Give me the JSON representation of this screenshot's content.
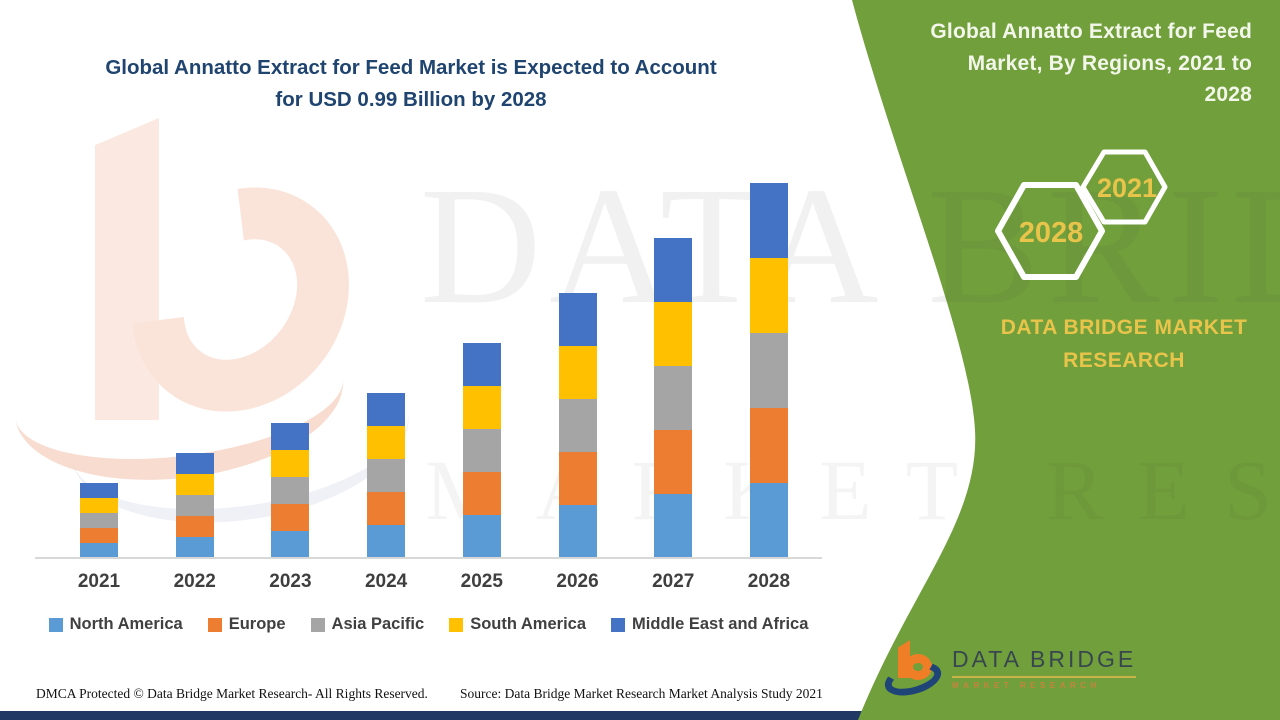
{
  "main_chart": {
    "title_line1": "Global Annatto Extract for Feed Market is Expected to Account",
    "title_line2": "for USD 0.99 Billion by 2028",
    "title_color": "#1F4470"
  },
  "chart_data": {
    "type": "bar",
    "stacked": true,
    "title": "Global Annatto Extract for Feed Market is Expected to Account for USD 0.99 Billion by 2028",
    "unit": "USD Billion",
    "categories": [
      "2021",
      "2022",
      "2023",
      "2024",
      "2025",
      "2026",
      "2027",
      "2028"
    ],
    "series": [
      {
        "name": "North America",
        "color": "#5B9BD5",
        "values": [
          0.041,
          0.056,
          0.071,
          0.086,
          0.113,
          0.141,
          0.169,
          0.198
        ]
      },
      {
        "name": "Europe",
        "color": "#ED7D31",
        "values": [
          0.041,
          0.056,
          0.071,
          0.086,
          0.113,
          0.141,
          0.169,
          0.198
        ]
      },
      {
        "name": "Asia Pacific",
        "color": "#A5A5A5",
        "values": [
          0.041,
          0.056,
          0.071,
          0.086,
          0.113,
          0.141,
          0.169,
          0.198
        ]
      },
      {
        "name": "South America",
        "color": "#FFC000",
        "values": [
          0.041,
          0.056,
          0.071,
          0.086,
          0.113,
          0.141,
          0.169,
          0.198
        ]
      },
      {
        "name": "Middle East and Africa",
        "color": "#4472C4",
        "values": [
          0.041,
          0.056,
          0.071,
          0.086,
          0.113,
          0.141,
          0.169,
          0.198
        ]
      }
    ],
    "totals_estimated": [
      0.21,
      0.28,
      0.36,
      0.43,
      0.56,
      0.71,
      0.85,
      0.99
    ],
    "xlabel": "",
    "ylabel": "",
    "y_axis_visible": false,
    "grid": false,
    "legend_position": "bottom"
  },
  "green_panel": {
    "background": "#719F3B",
    "title_lines": [
      "Global Annatto Extract for Feed",
      "Market, By Regions, 2021 to",
      "2028"
    ],
    "hexagon_small_label": "2021",
    "hexagon_large_label": "2028",
    "brand_text": "DATA BRIDGE MARKET RESEARCH",
    "accent_color": "#E8C44B"
  },
  "logo": {
    "name_text": "DATA BRIDGE",
    "sub_text": "MARKET RESEARCH"
  },
  "watermark": {
    "line1": "DATA BRIDGE",
    "line2": "MARKET RESEARCH"
  },
  "footer": {
    "dmca": "DMCA Protected © Data Bridge Market Research- All Rights Reserved.",
    "source": "Source: Data Bridge Market Research Market Analysis Study 2021",
    "bar_color": "#1F3864"
  }
}
